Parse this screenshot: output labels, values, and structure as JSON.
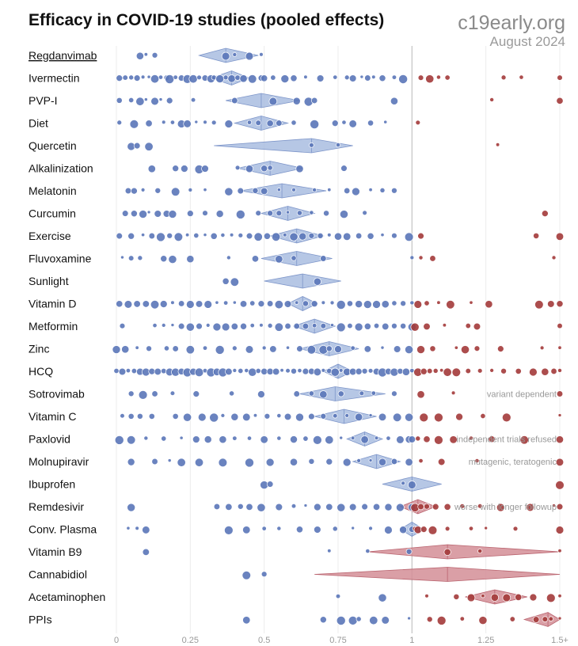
{
  "title": "Efficacy in COVID-19 studies (pooled effects)",
  "brand": {
    "site": "c19early.org",
    "date": "August 2024"
  },
  "colors": {
    "benefit_point": "#5a76b8",
    "benefit_diamond": "#a9bde0",
    "harm_point": "#a33a3a",
    "harm_diamond": "#d48e96",
    "reference_line": "#c8c8c8",
    "grid": "#ececec"
  },
  "chart_data": {
    "type": "scatter",
    "subtype": "forest plot of pooled relative risk with individual study points",
    "x_ticks": [
      {
        "value": 0,
        "label": "0"
      },
      {
        "value": 0.25,
        "label": "0.25"
      },
      {
        "value": 0.5,
        "label": "0.5"
      },
      {
        "value": 0.75,
        "label": "0.75"
      },
      {
        "value": 1,
        "label": "1"
      },
      {
        "value": 1.25,
        "label": "1.25"
      },
      {
        "value": 1.5,
        "label": "1.5+"
      }
    ],
    "xlim": [
      0,
      1.5
    ],
    "reference_value": 1,
    "rows": [
      {
        "name": "Regdanvimab",
        "link": true,
        "pooled": 0.37,
        "ci": [
          0.28,
          0.48
        ],
        "note": "",
        "studies": [
          0.08,
          0.1,
          0.13,
          0.37,
          0.4,
          0.45,
          0.49
        ]
      },
      {
        "name": "Ivermectin",
        "link": false,
        "pooled": 0.39,
        "ci": [
          0.32,
          0.45
        ],
        "note": "",
        "studies": [
          0.01,
          0.03,
          0.05,
          0.07,
          0.09,
          0.11,
          0.13,
          0.15,
          0.17,
          0.18,
          0.2,
          0.22,
          0.24,
          0.26,
          0.28,
          0.3,
          0.32,
          0.33,
          0.35,
          0.37,
          0.39,
          0.41,
          0.43,
          0.46,
          0.49,
          0.5,
          0.53,
          0.57,
          0.6,
          0.64,
          0.69,
          0.74,
          0.78,
          0.8,
          0.83,
          0.85,
          0.87,
          0.9,
          0.94,
          0.97,
          1.03,
          1.06,
          1.09,
          1.12,
          1.31,
          1.37,
          1.5
        ]
      },
      {
        "name": "PVP-I",
        "link": false,
        "pooled": 0.49,
        "ci": [
          0.37,
          0.62
        ],
        "note": "",
        "studies": [
          0.01,
          0.05,
          0.08,
          0.1,
          0.13,
          0.15,
          0.18,
          0.26,
          0.4,
          0.53,
          0.61,
          0.65,
          0.67,
          0.94,
          1.27,
          1.5
        ]
      },
      {
        "name": "Diet",
        "link": false,
        "pooled": 0.49,
        "ci": [
          0.4,
          0.58
        ],
        "note": "",
        "studies": [
          0.01,
          0.06,
          0.11,
          0.16,
          0.19,
          0.22,
          0.24,
          0.27,
          0.3,
          0.33,
          0.38,
          0.45,
          0.48,
          0.52,
          0.55,
          0.6,
          0.67,
          0.74,
          0.77,
          0.8,
          0.86,
          0.91,
          1.02
        ]
      },
      {
        "name": "Quercetin",
        "link": false,
        "pooled": 0.66,
        "ci": [
          0.33,
          0.8
        ],
        "note": "",
        "studies": [
          0.05,
          0.07,
          0.11,
          0.66,
          0.75,
          1.29
        ]
      },
      {
        "name": "Alkalinization",
        "link": false,
        "pooled": 0.52,
        "ci": [
          0.41,
          0.63
        ],
        "note": "",
        "studies": [
          0.12,
          0.2,
          0.23,
          0.28,
          0.3,
          0.41,
          0.45,
          0.5,
          0.52,
          0.62,
          0.77
        ]
      },
      {
        "name": "Melatonin",
        "link": false,
        "pooled": 0.56,
        "ci": [
          0.42,
          0.71
        ],
        "note": "",
        "studies": [
          0.04,
          0.06,
          0.09,
          0.14,
          0.2,
          0.25,
          0.3,
          0.38,
          0.42,
          0.47,
          0.5,
          0.55,
          0.6,
          0.67,
          0.72,
          0.78,
          0.81,
          0.86,
          0.9,
          0.94
        ]
      },
      {
        "name": "Curcumin",
        "link": false,
        "pooled": 0.58,
        "ci": [
          0.49,
          0.67
        ],
        "note": "",
        "studies": [
          0.03,
          0.06,
          0.09,
          0.11,
          0.14,
          0.17,
          0.19,
          0.25,
          0.3,
          0.35,
          0.42,
          0.48,
          0.52,
          0.55,
          0.58,
          0.62,
          0.66,
          0.71,
          0.77,
          0.84,
          1.45
        ]
      },
      {
        "name": "Exercise",
        "link": false,
        "pooled": 0.61,
        "ci": [
          0.52,
          0.7
        ],
        "note": "",
        "studies": [
          0.01,
          0.05,
          0.09,
          0.12,
          0.15,
          0.18,
          0.21,
          0.24,
          0.27,
          0.3,
          0.33,
          0.36,
          0.39,
          0.42,
          0.45,
          0.48,
          0.51,
          0.54,
          0.57,
          0.6,
          0.63,
          0.66,
          0.69,
          0.72,
          0.75,
          0.78,
          0.82,
          0.86,
          0.9,
          0.94,
          0.99,
          1.03,
          1.42,
          1.5
        ]
      },
      {
        "name": "Fluvoxamine",
        "link": false,
        "pooled": 0.61,
        "ci": [
          0.49,
          0.73
        ],
        "note": "",
        "studies": [
          0.02,
          0.05,
          0.08,
          0.16,
          0.19,
          0.25,
          0.38,
          0.47,
          0.55,
          0.6,
          0.7,
          1.0,
          1.03,
          1.07,
          1.48
        ]
      },
      {
        "name": "Sunlight",
        "link": false,
        "pooled": 0.63,
        "ci": [
          0.5,
          0.76
        ],
        "note": "",
        "studies": [
          0.37,
          0.4,
          0.68
        ]
      },
      {
        "name": "Vitamin D",
        "link": false,
        "pooled": 0.63,
        "ci": [
          0.58,
          0.68
        ],
        "note": "",
        "studies": [
          0.01,
          0.04,
          0.07,
          0.1,
          0.13,
          0.16,
          0.19,
          0.22,
          0.25,
          0.28,
          0.31,
          0.34,
          0.37,
          0.4,
          0.43,
          0.46,
          0.49,
          0.52,
          0.55,
          0.58,
          0.61,
          0.64,
          0.67,
          0.7,
          0.73,
          0.76,
          0.79,
          0.82,
          0.85,
          0.88,
          0.91,
          0.94,
          0.97,
          1.0,
          1.02,
          1.05,
          1.09,
          1.13,
          1.2,
          1.26,
          1.43,
          1.47,
          1.5
        ]
      },
      {
        "name": "Metformin",
        "link": false,
        "pooled": 0.67,
        "ci": [
          0.6,
          0.74
        ],
        "note": "",
        "studies": [
          0.02,
          0.13,
          0.16,
          0.19,
          0.22,
          0.25,
          0.28,
          0.31,
          0.34,
          0.37,
          0.4,
          0.43,
          0.46,
          0.49,
          0.52,
          0.55,
          0.58,
          0.61,
          0.64,
          0.67,
          0.7,
          0.73,
          0.76,
          0.79,
          0.82,
          0.85,
          0.88,
          0.91,
          0.94,
          0.97,
          1.0,
          1.01,
          1.05,
          1.11,
          1.19,
          1.22,
          1.5
        ]
      },
      {
        "name": "Zinc",
        "link": false,
        "pooled": 0.72,
        "ci": [
          0.62,
          0.82
        ],
        "note": "",
        "studies": [
          0.0,
          0.03,
          0.07,
          0.11,
          0.17,
          0.2,
          0.25,
          0.3,
          0.35,
          0.4,
          0.45,
          0.5,
          0.53,
          0.58,
          0.62,
          0.66,
          0.7,
          0.72,
          0.75,
          0.8,
          0.85,
          0.9,
          0.95,
          0.99,
          1.03,
          1.07,
          1.15,
          1.18,
          1.22,
          1.3,
          1.44,
          1.5
        ]
      },
      {
        "name": "HCQ",
        "link": false,
        "pooled": 0.75,
        "ci": [
          0.7,
          0.8
        ],
        "note": "",
        "studies": [
          0.0,
          0.02,
          0.04,
          0.06,
          0.08,
          0.1,
          0.12,
          0.14,
          0.16,
          0.18,
          0.2,
          0.22,
          0.24,
          0.26,
          0.28,
          0.3,
          0.32,
          0.34,
          0.36,
          0.38,
          0.4,
          0.42,
          0.44,
          0.46,
          0.48,
          0.5,
          0.52,
          0.54,
          0.56,
          0.58,
          0.6,
          0.62,
          0.64,
          0.66,
          0.68,
          0.7,
          0.72,
          0.74,
          0.76,
          0.78,
          0.8,
          0.82,
          0.84,
          0.86,
          0.88,
          0.9,
          0.92,
          0.94,
          0.96,
          0.98,
          1.0,
          1.02,
          1.04,
          1.06,
          1.08,
          1.1,
          1.12,
          1.15,
          1.19,
          1.23,
          1.27,
          1.31,
          1.36,
          1.41,
          1.45,
          1.48,
          1.5
        ]
      },
      {
        "name": "Sotrovimab",
        "link": false,
        "pooled": 0.74,
        "ci": [
          0.62,
          0.91
        ],
        "note": "variant dependent",
        "studies": [
          0.05,
          0.09,
          0.13,
          0.19,
          0.27,
          0.39,
          0.49,
          0.61,
          0.66,
          0.7,
          0.76,
          0.83,
          0.87,
          0.94,
          1.03,
          1.14,
          1.5
        ]
      },
      {
        "name": "Vitamin C",
        "link": false,
        "pooled": 0.77,
        "ci": [
          0.67,
          0.88
        ],
        "note": "",
        "studies": [
          0.02,
          0.05,
          0.08,
          0.12,
          0.2,
          0.24,
          0.29,
          0.33,
          0.36,
          0.4,
          0.44,
          0.47,
          0.51,
          0.55,
          0.58,
          0.62,
          0.66,
          0.7,
          0.74,
          0.78,
          0.82,
          0.86,
          0.9,
          0.95,
          0.99,
          1.04,
          1.09,
          1.16,
          1.24,
          1.32,
          1.5
        ]
      },
      {
        "name": "Paxlovid",
        "link": false,
        "pooled": 0.84,
        "ci": [
          0.78,
          0.9
        ],
        "note": "independent trials refused",
        "studies": [
          0.01,
          0.05,
          0.1,
          0.16,
          0.22,
          0.27,
          0.31,
          0.36,
          0.4,
          0.45,
          0.5,
          0.55,
          0.6,
          0.64,
          0.68,
          0.72,
          0.76,
          0.8,
          0.84,
          0.88,
          0.92,
          0.96,
          0.99,
          1.0,
          1.02,
          1.05,
          1.09,
          1.14,
          1.2,
          1.27,
          1.38,
          1.5
        ]
      },
      {
        "name": "Molnupiravir",
        "link": false,
        "pooled": 0.88,
        "ci": [
          0.8,
          0.96
        ],
        "note": "mutagenic, teratogenic",
        "studies": [
          0.05,
          0.13,
          0.18,
          0.22,
          0.28,
          0.36,
          0.45,
          0.52,
          0.6,
          0.66,
          0.72,
          0.78,
          0.82,
          0.86,
          0.9,
          0.94,
          0.99,
          1.03,
          1.1,
          1.22,
          1.5
        ]
      },
      {
        "name": "Ibuprofen",
        "link": false,
        "pooled": 1.0,
        "ci": [
          0.9,
          1.1
        ],
        "note": "",
        "studies": [
          0.5,
          0.52,
          0.97,
          1.0,
          1.5
        ]
      },
      {
        "name": "Remdesivir",
        "link": false,
        "pooled": 1.02,
        "ci": [
          0.96,
          1.08
        ],
        "note": "worse with longer followup",
        "studies": [
          0.05,
          0.34,
          0.38,
          0.42,
          0.45,
          0.49,
          0.55,
          0.6,
          0.64,
          0.68,
          0.72,
          0.76,
          0.8,
          0.84,
          0.88,
          0.92,
          0.96,
          1.0,
          1.01,
          1.03,
          1.05,
          1.08,
          1.12,
          1.17,
          1.23,
          1.3,
          1.4,
          1.48,
          1.5
        ]
      },
      {
        "name": "Conv. Plasma",
        "link": false,
        "pooled": 1.0,
        "ci": [
          0.96,
          1.04
        ],
        "note": "",
        "studies": [
          0.04,
          0.07,
          0.1,
          0.38,
          0.44,
          0.5,
          0.55,
          0.62,
          0.68,
          0.74,
          0.8,
          0.86,
          0.92,
          0.97,
          1.0,
          1.01,
          1.02,
          1.04,
          1.07,
          1.12,
          1.2,
          1.25,
          1.35,
          1.5
        ]
      },
      {
        "name": "Vitamin B9",
        "link": false,
        "pooled": 1.12,
        "ci": [
          0.85,
          1.5
        ],
        "note": "",
        "studies": [
          0.1,
          0.72,
          0.85,
          0.99,
          1.12,
          1.23,
          1.5
        ]
      },
      {
        "name": "Cannabidiol",
        "link": false,
        "pooled": 1.12,
        "ci": [
          0.67,
          1.5
        ],
        "note": "",
        "studies": [
          0.44,
          0.5
        ]
      },
      {
        "name": "Acetaminophen",
        "link": false,
        "pooled": 1.28,
        "ci": [
          1.18,
          1.39
        ],
        "note": "",
        "studies": [
          0.75,
          0.9,
          1.05,
          1.15,
          1.2,
          1.24,
          1.28,
          1.32,
          1.36,
          1.41,
          1.47,
          1.5
        ]
      },
      {
        "name": "PPIs",
        "link": false,
        "pooled": 1.46,
        "ci": [
          1.38,
          1.5
        ],
        "note": "",
        "studies": [
          0.44,
          0.7,
          0.76,
          0.8,
          0.82,
          0.87,
          0.91,
          0.99,
          1.06,
          1.1,
          1.17,
          1.24,
          1.34,
          1.42,
          1.45,
          1.47,
          1.5
        ]
      }
    ]
  }
}
